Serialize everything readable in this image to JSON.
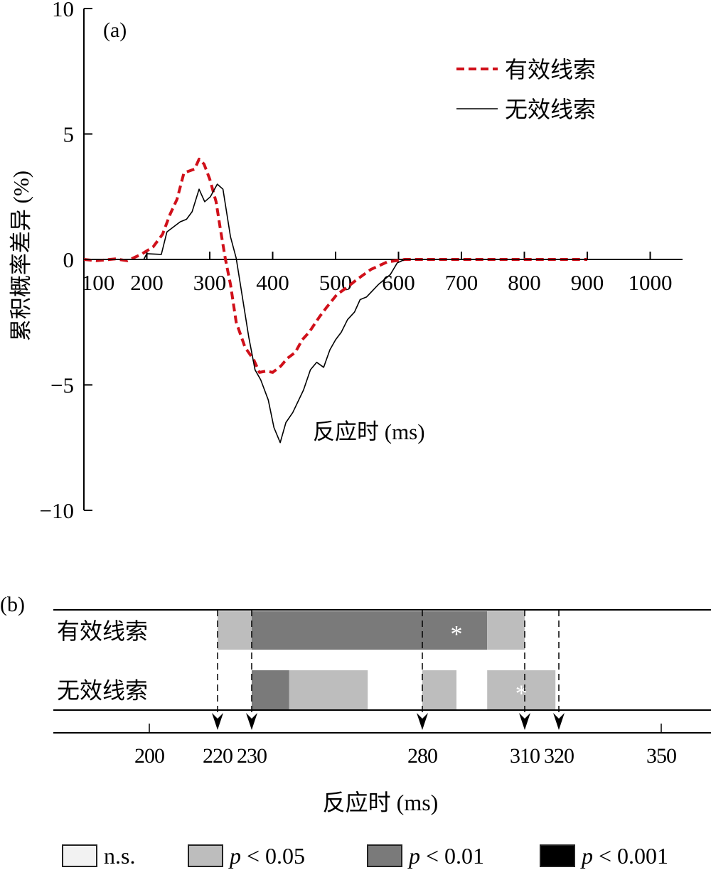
{
  "chart_data": [
    {
      "panel_label": "(a)",
      "type": "line",
      "xlabel": "反应时 (ms)",
      "ylabel": "累积概率差异 (%)",
      "xlim": [
        100,
        1000
      ],
      "ylim": [
        -10,
        10
      ],
      "xticks": [
        100,
        200,
        300,
        400,
        500,
        600,
        700,
        800,
        900,
        1000
      ],
      "yticks": [
        10,
        5,
        0,
        -5,
        -10
      ],
      "ytick_labels": [
        "10",
        "5",
        "0",
        "−5",
        "−10"
      ],
      "legend_position": "top-right",
      "grid": false,
      "series": [
        {
          "name": "有效线索",
          "color": "#d0101a",
          "style": "dashed",
          "x": [
            100,
            120,
            150,
            169,
            191,
            210,
            225,
            237,
            248,
            259,
            270,
            276,
            283,
            291,
            300,
            310,
            317,
            325,
            333,
            342,
            356,
            370,
            379,
            390,
            400,
            413,
            423,
            436,
            447,
            458,
            474,
            486,
            502,
            519,
            534,
            556,
            582,
            610,
            700,
            800,
            900
          ],
          "y": [
            0,
            -0.05,
            0.02,
            -0.05,
            0.2,
            0.5,
            1.0,
            1.8,
            2.4,
            3.45,
            3.55,
            3.6,
            4.0,
            3.8,
            3.2,
            2.3,
            1.2,
            0,
            -1.0,
            -2.5,
            -3.5,
            -4.0,
            -4.5,
            -4.45,
            -4.5,
            -4.25,
            -3.95,
            -3.7,
            -3.2,
            -2.9,
            -2.3,
            -1.9,
            -1.4,
            -1.1,
            -0.8,
            -0.4,
            -0.1,
            0,
            0,
            0,
            0
          ]
        },
        {
          "name": "无效线索",
          "color": "#000000",
          "style": "solid",
          "x": [
            100,
            150,
            195,
            200,
            223,
            232,
            253,
            263,
            272,
            283,
            292,
            301,
            312,
            321,
            333,
            342,
            362,
            372,
            381,
            393,
            402,
            412,
            421,
            432,
            449,
            460,
            470,
            481,
            491,
            500,
            509,
            519,
            530,
            539,
            549,
            568,
            587,
            598,
            610,
            700,
            800,
            900
          ],
          "y": [
            0,
            0,
            0,
            0.23,
            0.2,
            1.1,
            1.5,
            1.6,
            1.9,
            2.8,
            2.3,
            2.5,
            3.0,
            2.8,
            0.9,
            0.05,
            -3.1,
            -4.4,
            -4.8,
            -5.6,
            -6.7,
            -7.3,
            -6.5,
            -6.1,
            -5.2,
            -4.4,
            -4.1,
            -4.3,
            -3.6,
            -3.2,
            -2.9,
            -2.4,
            -2.1,
            -1.6,
            -1.5,
            -1.0,
            -0.6,
            -0.14,
            0,
            0,
            0,
            0
          ]
        }
      ]
    },
    {
      "panel_label": "(b)",
      "type": "bar",
      "xlabel": "反应时 (ms)",
      "xlim": [
        185,
        360
      ],
      "xticks": [
        200,
        350
      ],
      "markers": [
        220,
        230,
        280,
        310,
        320
      ],
      "marker_labels": [
        "200",
        "220",
        "230",
        "280",
        "310",
        "320",
        "350"
      ],
      "rows": [
        {
          "name": "有效线索",
          "segments": [
            {
              "start": 220,
              "end": 230,
              "level": "p < 0.05"
            },
            {
              "start": 230,
              "end": 299,
              "level": "p < 0.01"
            },
            {
              "start": 299,
              "end": 310,
              "level": "p < 0.05"
            }
          ],
          "asterisk_at": 290
        },
        {
          "name": "无效线索",
          "segments": [
            {
              "start": 230,
              "end": 241,
              "level": "p < 0.01"
            },
            {
              "start": 241,
              "end": 264,
              "level": "p < 0.05"
            },
            {
              "start": 280,
              "end": 290,
              "level": "p < 0.05"
            },
            {
              "start": 299,
              "end": 319,
              "level": "p < 0.05"
            }
          ],
          "asterisk_at": 309
        }
      ],
      "asterisk": "*",
      "legend": [
        {
          "label": "n.s.",
          "italic_p": false,
          "color": "#f2f2f2"
        },
        {
          "label": " < 0.05",
          "italic_p": true,
          "key": "p < 0.05",
          "color": "#bdbdbd"
        },
        {
          "label": " < 0.01",
          "italic_p": true,
          "key": "p < 0.01",
          "color": "#7a7a7a"
        },
        {
          "label": " < 0.001",
          "italic_p": true,
          "key": "p < 0.001",
          "color": "#000000"
        }
      ],
      "legend_p": "p"
    }
  ]
}
